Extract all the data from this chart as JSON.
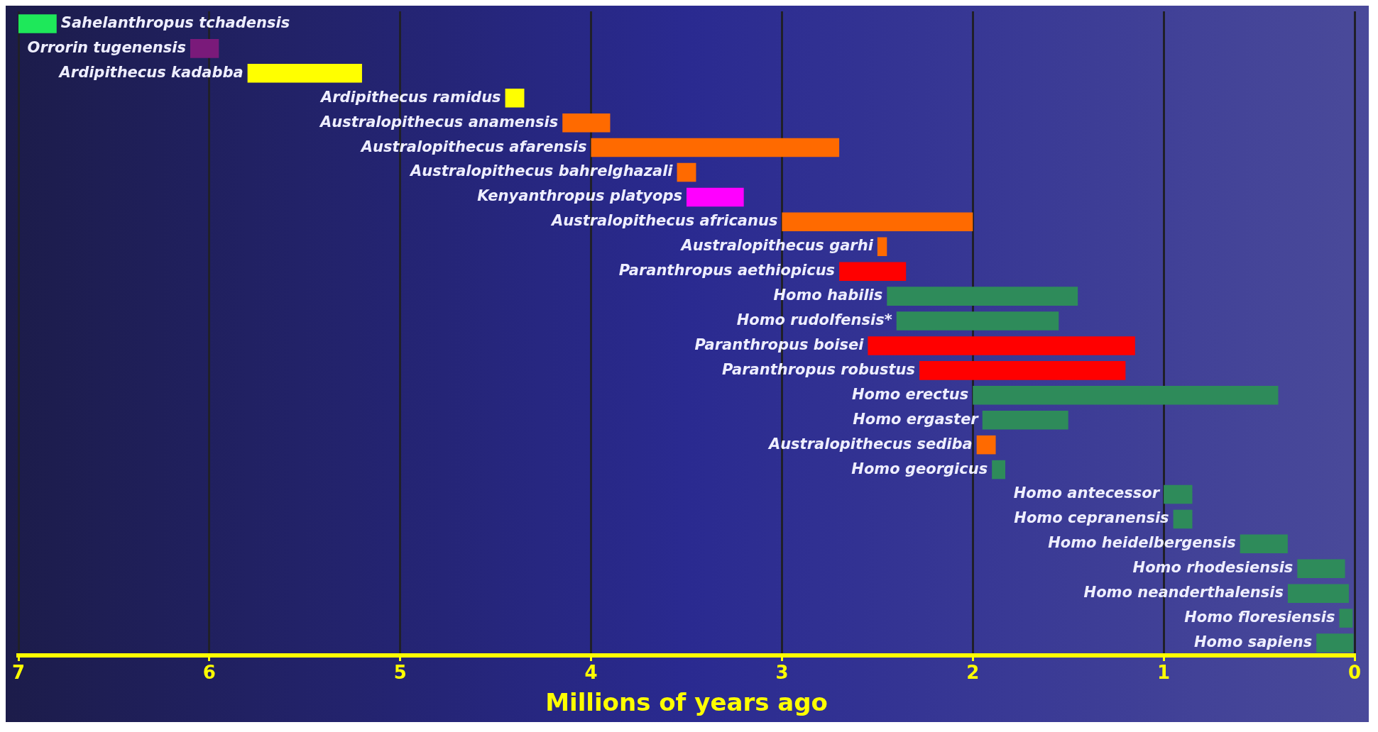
{
  "chart_data": {
    "type": "bar",
    "orientation": "horizontal",
    "xlabel": "Millions of years ago",
    "categories": [
      "Sahelanthropus tchadensis",
      "Orrorin tugenensis",
      "Ardipithecus kadabba",
      "Ardipithecus ramidus",
      "Australopithecus anamensis",
      "Australopithecus afarensis",
      "Australopithecus bahrelghazali",
      "Kenyanthropus platyops",
      "Australopithecus africanus",
      "Australopithecus garhi",
      "Paranthropus aethiopicus",
      "Homo habilis",
      "Homo rudolfensis*",
      "Paranthropus boisei",
      "Paranthropus robustus",
      "Homo erectus",
      "Homo ergaster",
      "Australopithecus sediba",
      "Homo georgicus",
      "Homo antecessor",
      "Homo cepranensis",
      "Homo heidelbergensis",
      "Homo rhodesiensis",
      "Homo neanderthalensis",
      "Homo floresiensis",
      "Homo sapiens"
    ],
    "base": [
      6.8,
      5.95,
      5.2,
      4.35,
      3.9,
      2.7,
      3.45,
      3.2,
      2.0,
      2.45,
      2.35,
      1.45,
      1.55,
      1.15,
      1.2,
      0.4,
      1.5,
      1.88,
      1.83,
      0.85,
      0.85,
      0.35,
      0.05,
      0.03,
      0.01,
      0
    ],
    "values": [
      0.2,
      0.15,
      0.6,
      0.1,
      0.25,
      1.3,
      0.1,
      0.3,
      1.0,
      0.05,
      0.35,
      1.0,
      0.85,
      1.4,
      1.08,
      1.6,
      0.45,
      0.1,
      0.07,
      0.15,
      0.1,
      0.25,
      0.25,
      0.32,
      0.07,
      0.2
    ],
    "colors": [
      "#1ee85a",
      "#7a1a7a",
      "#ffff00",
      "#ffff00",
      "#ff6a00",
      "#ff6a00",
      "#ff6a00",
      "#ff00ff",
      "#ff6a00",
      "#ff6a00",
      "#ff0000",
      "#2e8b5a",
      "#2e8b5a",
      "#ff0000",
      "#ff0000",
      "#2e8b5a",
      "#2e8b5a",
      "#ff6a00",
      "#2e8b5a",
      "#2e8b5a",
      "#2e8b5a",
      "#2e8b5a",
      "#2e8b5a",
      "#2e8b5a",
      "#2e8b5a",
      "#2e8b5a"
    ],
    "xlim": [
      7,
      0
    ],
    "xticks": [
      7,
      6,
      5,
      4,
      3,
      2,
      1,
      0
    ],
    "grid": "x",
    "tick_labels": "x",
    "legend": false
  }
}
